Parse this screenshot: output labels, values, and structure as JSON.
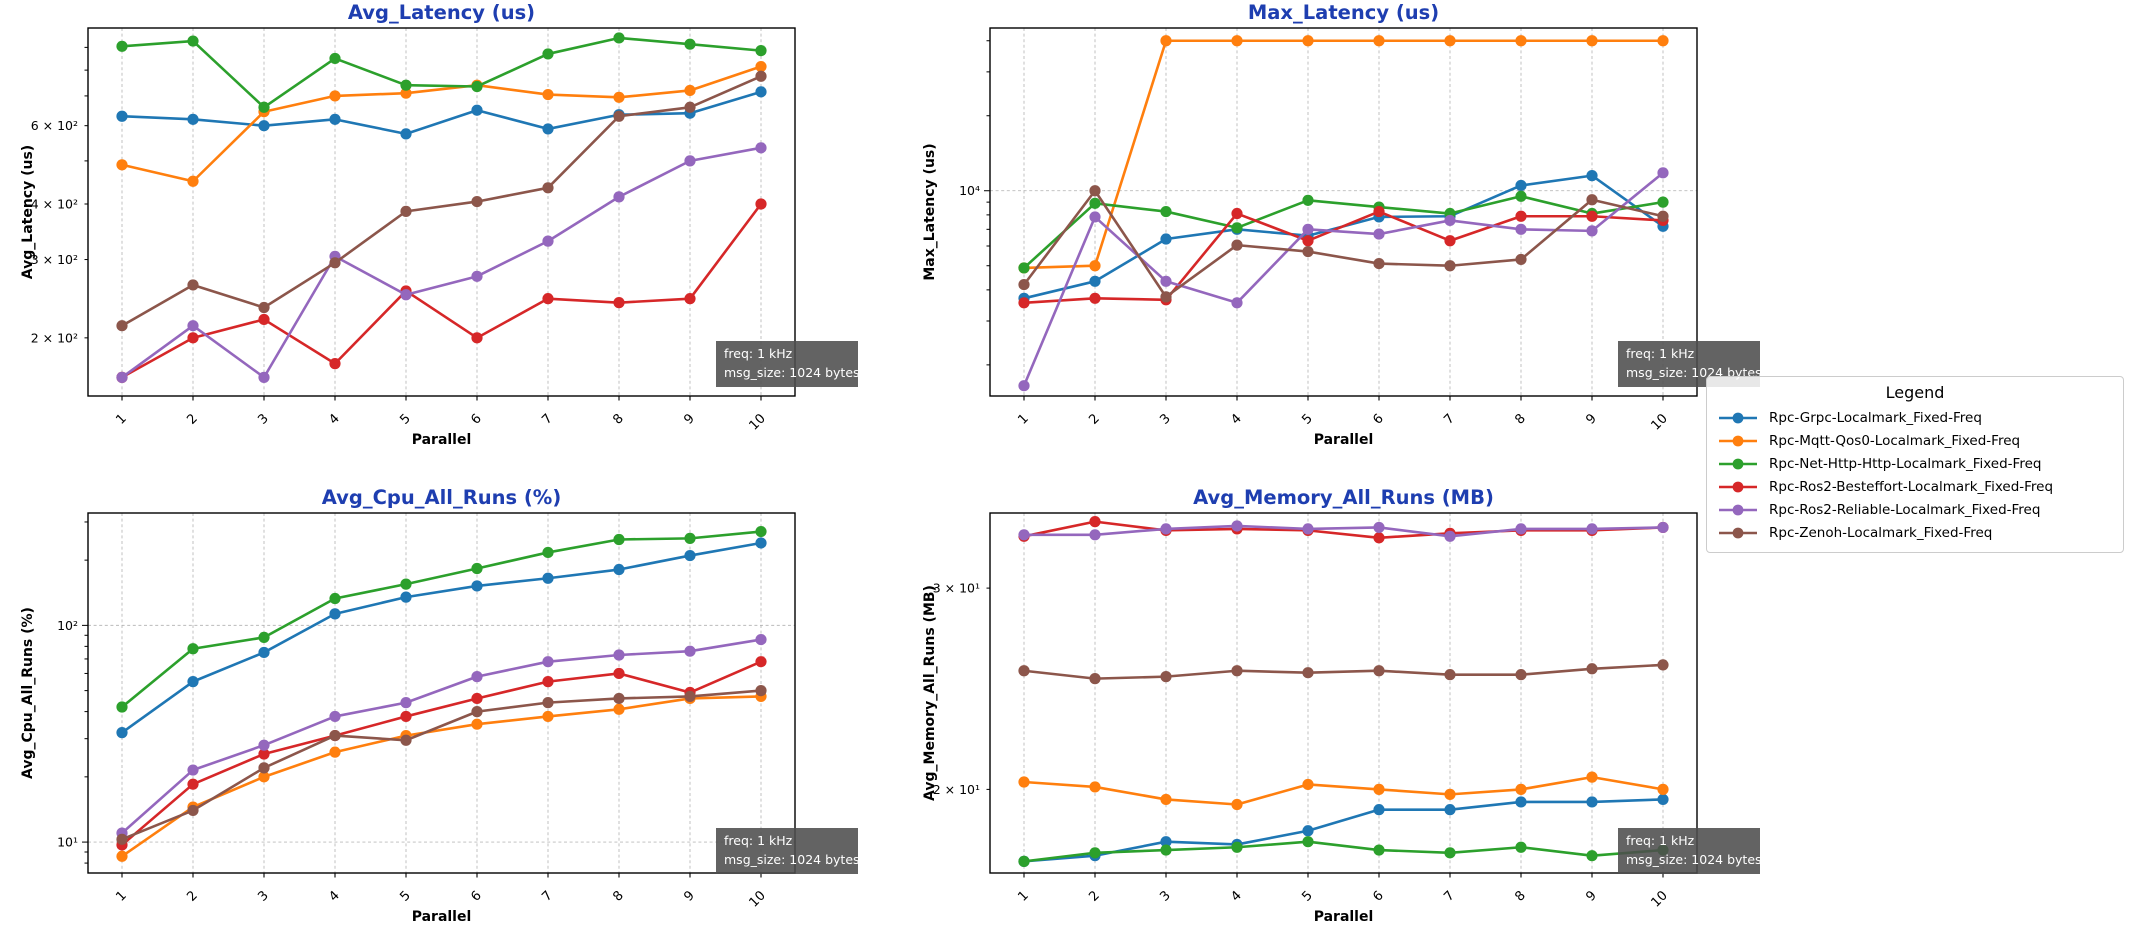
{
  "legend": {
    "title": "Legend",
    "entries": [
      {
        "label": "Rpc-Grpc-Localmark_Fixed-Freq",
        "color": "#1f77b4"
      },
      {
        "label": "Rpc-Mqtt-Qos0-Localmark_Fixed-Freq",
        "color": "#ff7f0e"
      },
      {
        "label": "Rpc-Net-Http-Http-Localmark_Fixed-Freq",
        "color": "#2ca02c"
      },
      {
        "label": "Rpc-Ros2-Besteffort-Localmark_Fixed-Freq",
        "color": "#d62728"
      },
      {
        "label": "Rpc-Ros2-Reliable-Localmark_Fixed-Freq",
        "color": "#9467bd"
      },
      {
        "label": "Rpc-Zenoh-Localmark_Fixed-Freq",
        "color": "#8c564b"
      }
    ]
  },
  "style": {
    "title_color": "#1e3eb0",
    "text_color": "#000000",
    "grid_color": "#aaaaaa"
  },
  "chart_data": [
    {
      "id": "avg-latency",
      "type": "line",
      "title": "Avg_Latency (us)",
      "xlabel": "Parallel",
      "ylabel": "Avg_Latency (us)",
      "yscale": "log",
      "ylim": [
        148,
        995
      ],
      "x": [
        1,
        2,
        3,
        4,
        5,
        6,
        7,
        8,
        9,
        10
      ],
      "yticks": [
        {
          "value": 200,
          "label": "2 × 10²",
          "grid": false
        },
        {
          "value": 300,
          "label": "3 × 10²",
          "grid": false
        },
        {
          "value": 400,
          "label": "4 × 10²",
          "grid": false
        },
        {
          "value": 600,
          "label": "6 × 10²",
          "grid": false
        }
      ],
      "annotation": [
        "freq: 1 kHz",
        "msg_size: 1024 bytes"
      ],
      "series": [
        {
          "name": "Rpc-Grpc-Localmark_Fixed-Freq",
          "color": "#1f77b4",
          "values": [
            630,
            620,
            600,
            620,
            575,
            650,
            590,
            635,
            640,
            715
          ]
        },
        {
          "name": "Rpc-Mqtt-Qos0-Localmark_Fixed-Freq",
          "color": "#ff7f0e",
          "values": [
            490,
            450,
            645,
            700,
            710,
            740,
            705,
            695,
            720,
            815
          ]
        },
        {
          "name": "Rpc-Net-Http-Http-Localmark_Fixed-Freq",
          "color": "#2ca02c",
          "values": [
            905,
            930,
            660,
            850,
            740,
            735,
            870,
            945,
            915,
            885
          ]
        },
        {
          "name": "Rpc-Ros2-Besteffort-Localmark_Fixed-Freq",
          "color": "#d62728",
          "values": [
            163,
            200,
            220,
            175,
            255,
            200,
            245,
            240,
            245,
            400
          ]
        },
        {
          "name": "Rpc-Ros2-Reliable-Localmark_Fixed-Freq",
          "color": "#9467bd",
          "values": [
            163,
            213,
            163,
            305,
            250,
            275,
            330,
            415,
            500,
            535
          ]
        },
        {
          "name": "Rpc-Zenoh-Localmark_Fixed-Freq",
          "color": "#8c564b",
          "values": [
            213,
            263,
            234,
            295,
            385,
            405,
            435,
            630,
            660,
            775
          ]
        }
      ]
    },
    {
      "id": "max-latency",
      "type": "line",
      "title": "Max_Latency (us)",
      "xlabel": "Parallel",
      "ylabel": "Max_Latency (us)",
      "yscale": "log",
      "ylim": [
        1500,
        45000
      ],
      "x": [
        1,
        2,
        3,
        4,
        5,
        6,
        7,
        8,
        9,
        10
      ],
      "yticks": [
        {
          "value": 10000,
          "label": "10⁴",
          "grid": true
        }
      ],
      "annotation": [
        "freq: 1 kHz",
        "msg_size: 1024 bytes"
      ],
      "series": [
        {
          "name": "Rpc-Grpc-Localmark_Fixed-Freq",
          "color": "#1f77b4",
          "values": [
            3700,
            4330,
            6400,
            7000,
            6600,
            7850,
            7900,
            10500,
            11500,
            7200
          ]
        },
        {
          "name": "Rpc-Mqtt-Qos0-Localmark_Fixed-Freq",
          "color": "#ff7f0e",
          "values": [
            4900,
            5000,
            40000,
            40000,
            40000,
            40000,
            40000,
            40000,
            40000,
            40000
          ]
        },
        {
          "name": "Rpc-Net-Http-Http-Localmark_Fixed-Freq",
          "color": "#2ca02c",
          "values": [
            4900,
            8900,
            8250,
            7100,
            9150,
            8600,
            8100,
            9500,
            8100,
            9000
          ]
        },
        {
          "name": "Rpc-Ros2-Besteffort-Localmark_Fixed-Freq",
          "color": "#d62728",
          "values": [
            3550,
            3700,
            3650,
            8100,
            6300,
            8250,
            6300,
            7900,
            7900,
            7600
          ]
        },
        {
          "name": "Rpc-Ros2-Reliable-Localmark_Fixed-Freq",
          "color": "#9467bd",
          "values": [
            1650,
            7850,
            4330,
            3550,
            7000,
            6700,
            7600,
            7000,
            6900,
            11800
          ]
        },
        {
          "name": "Rpc-Zenoh-Localmark_Fixed-Freq",
          "color": "#8c564b",
          "values": [
            4200,
            10000,
            3750,
            6050,
            5700,
            5100,
            5000,
            5300,
            9200,
            7900
          ]
        }
      ]
    },
    {
      "id": "avg-cpu",
      "type": "line",
      "title": "Avg_Cpu_All_Runs (%)",
      "xlabel": "Parallel",
      "ylabel": "Avg_Cpu_All_Runs (%)",
      "yscale": "log",
      "ylim": [
        7.2,
        330
      ],
      "x": [
        1,
        2,
        3,
        4,
        5,
        6,
        7,
        8,
        9,
        10
      ],
      "yticks": [
        {
          "value": 10,
          "label": "10¹",
          "grid": true
        },
        {
          "value": 100,
          "label": "10²",
          "grid": true
        }
      ],
      "annotation": [
        "freq: 1 kHz",
        "msg_size: 1024 bytes"
      ],
      "series": [
        {
          "name": "Rpc-Grpc-Localmark_Fixed-Freq",
          "color": "#1f77b4",
          "values": [
            32,
            55,
            75,
            113,
            135,
            152,
            165,
            181,
            210,
            240
          ]
        },
        {
          "name": "Rpc-Mqtt-Qos0-Localmark_Fixed-Freq",
          "color": "#ff7f0e",
          "values": [
            8.6,
            14.5,
            20,
            26,
            31,
            35,
            38,
            41,
            46,
            47
          ]
        },
        {
          "name": "Rpc-Net-Http-Http-Localmark_Fixed-Freq",
          "color": "#2ca02c",
          "values": [
            42,
            78,
            88,
            133,
            155,
            183,
            217,
            249,
            252,
            271
          ]
        },
        {
          "name": "Rpc-Ros2-Besteffort-Localmark_Fixed-Freq",
          "color": "#d62728",
          "values": [
            9.7,
            18.5,
            25.5,
            31,
            38,
            46,
            55,
            60,
            49,
            68
          ]
        },
        {
          "name": "Rpc-Ros2-Reliable-Localmark_Fixed-Freq",
          "color": "#9467bd",
          "values": [
            11,
            21.5,
            28,
            38,
            44,
            58,
            68,
            73,
            76,
            86
          ]
        },
        {
          "name": "Rpc-Zenoh-Localmark_Fixed-Freq",
          "color": "#8c564b",
          "values": [
            10.3,
            14,
            22,
            31,
            29.5,
            40,
            44,
            46,
            47,
            50
          ]
        }
      ]
    },
    {
      "id": "avg-memory",
      "type": "line",
      "title": "Avg_Memory_All_Runs (MB)",
      "xlabel": "Parallel",
      "ylabel": "Avg_Memory_All_Runs (MB)",
      "yscale": "log",
      "ylim": [
        16.9,
        34.9
      ],
      "x": [
        1,
        2,
        3,
        4,
        5,
        6,
        7,
        8,
        9,
        10
      ],
      "yticks": [
        {
          "value": 20,
          "label": "2 × 10¹",
          "grid": false
        },
        {
          "value": 30,
          "label": "3 × 10¹",
          "grid": false
        }
      ],
      "annotation": [
        "freq: 1 kHz",
        "msg_size: 1024 bytes"
      ],
      "series": [
        {
          "name": "Rpc-Grpc-Localmark_Fixed-Freq",
          "color": "#1f77b4",
          "values": [
            17.3,
            17.5,
            18.0,
            17.9,
            18.4,
            19.2,
            19.2,
            19.5,
            19.5,
            19.6
          ]
        },
        {
          "name": "Rpc-Mqtt-Qos0-Localmark_Fixed-Freq",
          "color": "#ff7f0e",
          "values": [
            20.3,
            20.1,
            19.6,
            19.4,
            20.2,
            20.0,
            19.8,
            20.0,
            20.5,
            20.0
          ]
        },
        {
          "name": "Rpc-Net-Http-Http-Localmark_Fixed-Freq",
          "color": "#2ca02c",
          "values": [
            17.3,
            17.6,
            17.7,
            17.8,
            18.0,
            17.7,
            17.6,
            17.8,
            17.5,
            17.7
          ]
        },
        {
          "name": "Rpc-Ros2-Besteffort-Localmark_Fixed-Freq",
          "color": "#d62728",
          "values": [
            33.3,
            34.3,
            33.7,
            33.8,
            33.7,
            33.2,
            33.5,
            33.7,
            33.7,
            33.9
          ]
        },
        {
          "name": "Rpc-Ros2-Reliable-Localmark_Fixed-Freq",
          "color": "#9467bd",
          "values": [
            33.4,
            33.4,
            33.8,
            34.0,
            33.8,
            33.9,
            33.3,
            33.8,
            33.8,
            33.9
          ]
        },
        {
          "name": "Rpc-Zenoh-Localmark_Fixed-Freq",
          "color": "#8c564b",
          "values": [
            25.4,
            25.0,
            25.1,
            25.4,
            25.3,
            25.4,
            25.2,
            25.2,
            25.5,
            25.7
          ]
        }
      ]
    }
  ]
}
